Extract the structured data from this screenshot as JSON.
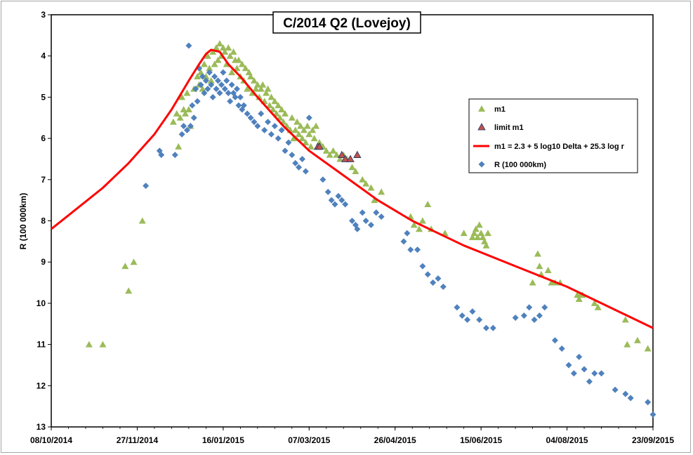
{
  "chart_data": {
    "type": "scatter",
    "title": "C/2014 Q2 (Lovejoy)",
    "xlabel": "",
    "ylabel": "R (100 000km)",
    "x_type": "date",
    "xlim": [
      "2014-10-08",
      "2015-09-23"
    ],
    "ylim": [
      3,
      13
    ],
    "y_inverted": true,
    "x_ticks": [
      "08/10/2014",
      "27/11/2014",
      "16/01/2015",
      "07/03/2015",
      "26/04/2015",
      "15/06/2015",
      "04/08/2015",
      "23/09/2015"
    ],
    "y_ticks": [
      "3",
      "4",
      "5",
      "6",
      "7",
      "8",
      "9",
      "10",
      "11",
      "12",
      "13"
    ],
    "grid": false,
    "legend_position": "right",
    "series": [
      {
        "name": "m1",
        "marker": "triangle",
        "color": "#9bbb59",
        "points": [
          [
            "2014-10-30",
            11.0
          ],
          [
            "2014-11-07",
            11.0
          ],
          [
            "2014-11-20",
            9.1
          ],
          [
            "2014-11-22",
            9.7
          ],
          [
            "2014-11-25",
            9.0
          ],
          [
            "2014-11-30",
            8.0
          ],
          [
            "2014-12-18",
            5.6
          ],
          [
            "2014-12-20",
            5.4
          ],
          [
            "2014-12-21",
            6.2
          ],
          [
            "2014-12-22",
            5.5
          ],
          [
            "2014-12-23",
            5.0
          ],
          [
            "2014-12-24",
            5.3
          ],
          [
            "2014-12-25",
            5.4
          ],
          [
            "2014-12-26",
            4.9
          ],
          [
            "2014-12-27",
            5.3
          ],
          [
            "2014-12-28",
            5.7
          ],
          [
            "2014-12-30",
            4.8
          ],
          [
            "2015-01-01",
            4.5
          ],
          [
            "2015-01-02",
            4.7
          ],
          [
            "2015-01-03",
            4.4
          ],
          [
            "2015-01-04",
            4.8
          ],
          [
            "2015-01-05",
            4.2
          ],
          [
            "2015-01-06",
            4.5
          ],
          [
            "2015-01-07",
            4.0
          ],
          [
            "2015-01-08",
            4.3
          ],
          [
            "2015-01-09",
            4.6
          ],
          [
            "2015-01-10",
            3.9
          ],
          [
            "2015-01-11",
            4.2
          ],
          [
            "2015-01-12",
            3.8
          ],
          [
            "2015-01-13",
            4.1
          ],
          [
            "2015-01-14",
            3.7
          ],
          [
            "2015-01-15",
            4.0
          ],
          [
            "2015-01-16",
            3.8
          ],
          [
            "2015-01-17",
            3.9
          ],
          [
            "2015-01-18",
            4.2
          ],
          [
            "2015-01-19",
            3.8
          ],
          [
            "2015-01-20",
            4.0
          ],
          [
            "2015-01-21",
            4.4
          ],
          [
            "2015-01-22",
            3.9
          ],
          [
            "2015-01-23",
            4.1
          ],
          [
            "2015-01-24",
            4.3
          ],
          [
            "2015-01-25",
            4.1
          ],
          [
            "2015-01-26",
            4.5
          ],
          [
            "2015-01-27",
            4.2
          ],
          [
            "2015-01-28",
            4.6
          ],
          [
            "2015-01-29",
            4.3
          ],
          [
            "2015-01-30",
            4.8
          ],
          [
            "2015-01-31",
            4.4
          ],
          [
            "2015-02-01",
            4.5
          ],
          [
            "2015-02-02",
            4.9
          ],
          [
            "2015-02-03",
            4.6
          ],
          [
            "2015-02-04",
            4.8
          ],
          [
            "2015-02-05",
            4.7
          ],
          [
            "2015-02-06",
            5.0
          ],
          [
            "2015-02-07",
            4.8
          ],
          [
            "2015-02-08",
            4.7
          ],
          [
            "2015-02-09",
            5.1
          ],
          [
            "2015-02-10",
            4.9
          ],
          [
            "2015-02-11",
            4.8
          ],
          [
            "2015-02-12",
            5.2
          ],
          [
            "2015-02-13",
            5.0
          ],
          [
            "2015-02-14",
            5.3
          ],
          [
            "2015-02-15",
            5.1
          ],
          [
            "2015-02-16",
            5.4
          ],
          [
            "2015-02-17",
            5.2
          ],
          [
            "2015-02-18",
            5.5
          ],
          [
            "2015-02-19",
            5.3
          ],
          [
            "2015-02-20",
            5.6
          ],
          [
            "2015-02-21",
            5.4
          ],
          [
            "2015-02-22",
            5.7
          ],
          [
            "2015-02-24",
            5.8
          ],
          [
            "2015-02-25",
            5.5
          ],
          [
            "2015-02-26",
            6.0
          ],
          [
            "2015-02-27",
            5.8
          ],
          [
            "2015-02-28",
            5.6
          ],
          [
            "2015-03-01",
            5.9
          ],
          [
            "2015-03-02",
            5.7
          ],
          [
            "2015-03-03",
            6.0
          ],
          [
            "2015-03-04",
            5.8
          ],
          [
            "2015-03-05",
            6.1
          ],
          [
            "2015-03-06",
            5.7
          ],
          [
            "2015-03-07",
            5.9
          ],
          [
            "2015-03-08",
            6.2
          ],
          [
            "2015-03-09",
            5.8
          ],
          [
            "2015-03-10",
            6.0
          ],
          [
            "2015-03-11",
            5.7
          ],
          [
            "2015-03-13",
            6.1
          ],
          [
            "2015-03-15",
            6.2
          ],
          [
            "2015-03-17",
            6.3
          ],
          [
            "2015-03-19",
            6.4
          ],
          [
            "2015-03-21",
            6.3
          ],
          [
            "2015-03-23",
            6.4
          ],
          [
            "2015-03-25",
            6.5
          ],
          [
            "2015-03-27",
            6.4
          ],
          [
            "2015-03-29",
            6.5
          ],
          [
            "2015-04-01",
            6.7
          ],
          [
            "2015-04-03",
            6.8
          ],
          [
            "2015-04-07",
            7.0
          ],
          [
            "2015-04-09",
            7.1
          ],
          [
            "2015-04-12",
            7.2
          ],
          [
            "2015-04-14",
            7.5
          ],
          [
            "2015-04-18",
            7.3
          ],
          [
            "2015-05-05",
            7.9
          ],
          [
            "2015-05-07",
            8.1
          ],
          [
            "2015-05-10",
            8.2
          ],
          [
            "2015-05-12",
            8.0
          ],
          [
            "2015-05-15",
            7.6
          ],
          [
            "2015-05-17",
            8.2
          ],
          [
            "2015-05-25",
            8.3
          ],
          [
            "2015-06-05",
            8.3
          ],
          [
            "2015-06-10",
            8.4
          ],
          [
            "2015-06-11",
            8.3
          ],
          [
            "2015-06-12",
            8.2
          ],
          [
            "2015-06-13",
            8.4
          ],
          [
            "2015-06-14",
            8.1
          ],
          [
            "2015-06-15",
            8.3
          ],
          [
            "2015-06-16",
            8.4
          ],
          [
            "2015-06-17",
            8.5
          ],
          [
            "2015-06-18",
            8.6
          ],
          [
            "2015-06-19",
            8.3
          ],
          [
            "2015-07-15",
            9.5
          ],
          [
            "2015-07-18",
            8.8
          ],
          [
            "2015-07-19",
            9.1
          ],
          [
            "2015-07-20",
            9.3
          ],
          [
            "2015-07-24",
            9.2
          ],
          [
            "2015-07-26",
            9.5
          ],
          [
            "2015-07-28",
            9.5
          ],
          [
            "2015-07-31",
            9.5
          ],
          [
            "2015-08-10",
            9.8
          ],
          [
            "2015-08-11",
            9.9
          ],
          [
            "2015-08-12",
            9.8
          ],
          [
            "2015-08-13",
            9.8
          ],
          [
            "2015-08-20",
            10.0
          ],
          [
            "2015-08-22",
            10.1
          ],
          [
            "2015-09-07",
            10.4
          ],
          [
            "2015-09-08",
            11.0
          ],
          [
            "2015-09-14",
            10.9
          ],
          [
            "2015-09-20",
            11.1
          ]
        ]
      },
      {
        "name": "limit m1",
        "marker": "triangle",
        "color": "#c0504d",
        "stroke": "#1f3864",
        "points": [
          [
            "2015-03-12",
            6.2
          ],
          [
            "2015-03-13",
            6.2
          ],
          [
            "2015-03-26",
            6.4
          ],
          [
            "2015-03-28",
            6.5
          ],
          [
            "2015-03-31",
            6.5
          ],
          [
            "2015-04-04",
            6.4
          ]
        ]
      },
      {
        "name": "m1 = 2.3 + 5 log10 Delta + 25.3 log r",
        "type": "line",
        "color": "#ff0000",
        "points": [
          [
            "2014-10-08",
            8.2
          ],
          [
            "2014-10-23",
            7.7
          ],
          [
            "2014-11-07",
            7.2
          ],
          [
            "2014-11-22",
            6.6
          ],
          [
            "2014-12-07",
            5.9
          ],
          [
            "2014-12-17",
            5.3
          ],
          [
            "2014-12-27",
            4.6
          ],
          [
            "2015-01-02",
            4.2
          ],
          [
            "2015-01-06",
            3.95
          ],
          [
            "2015-01-09",
            3.85
          ],
          [
            "2015-01-14",
            3.9
          ],
          [
            "2015-01-19",
            4.2
          ],
          [
            "2015-01-26",
            4.5
          ],
          [
            "2015-02-05",
            5.0
          ],
          [
            "2015-02-20",
            5.7
          ],
          [
            "2015-03-07",
            6.3
          ],
          [
            "2015-03-27",
            6.9
          ],
          [
            "2015-04-16",
            7.5
          ],
          [
            "2015-05-06",
            8.0
          ],
          [
            "2015-06-05",
            8.6
          ],
          [
            "2015-07-05",
            9.1
          ],
          [
            "2015-08-04",
            9.6
          ],
          [
            "2015-09-03",
            10.2
          ],
          [
            "2015-09-23",
            10.6
          ]
        ]
      },
      {
        "name": "R (100 000km)",
        "marker": "diamond",
        "color": "#4f81bd",
        "points": [
          [
            "2014-12-02",
            7.15
          ],
          [
            "2014-12-10",
            6.3
          ],
          [
            "2014-12-11",
            6.4
          ],
          [
            "2014-12-19",
            6.4
          ],
          [
            "2014-12-23",
            5.9
          ],
          [
            "2014-12-24",
            5.7
          ],
          [
            "2014-12-26",
            5.8
          ],
          [
            "2014-12-27",
            3.75
          ],
          [
            "2014-12-28",
            5.7
          ],
          [
            "2014-12-29",
            5.2
          ],
          [
            "2014-12-30",
            5.5
          ],
          [
            "2014-12-31",
            4.8
          ],
          [
            "2015-01-01",
            5.1
          ],
          [
            "2015-01-02",
            4.3
          ],
          [
            "2015-01-03",
            4.7
          ],
          [
            "2015-01-04",
            4.5
          ],
          [
            "2015-01-05",
            4.9
          ],
          [
            "2015-01-06",
            4.6
          ],
          [
            "2015-01-07",
            4.8
          ],
          [
            "2015-01-08",
            4.4
          ],
          [
            "2015-01-09",
            4.7
          ],
          [
            "2015-01-10",
            5.0
          ],
          [
            "2015-01-11",
            4.5
          ],
          [
            "2015-01-12",
            4.8
          ],
          [
            "2015-01-13",
            4.6
          ],
          [
            "2015-01-14",
            4.9
          ],
          [
            "2015-01-15",
            4.7
          ],
          [
            "2015-01-16",
            4.4
          ],
          [
            "2015-01-17",
            4.8
          ],
          [
            "2015-01-18",
            4.6
          ],
          [
            "2015-01-19",
            4.9
          ],
          [
            "2015-01-20",
            5.1
          ],
          [
            "2015-01-21",
            4.7
          ],
          [
            "2015-01-22",
            4.9
          ],
          [
            "2015-01-23",
            5.0
          ],
          [
            "2015-01-24",
            4.8
          ],
          [
            "2015-01-25",
            5.2
          ],
          [
            "2015-01-26",
            5.0
          ],
          [
            "2015-01-27",
            5.3
          ],
          [
            "2015-01-28",
            5.2
          ],
          [
            "2015-01-30",
            5.4
          ],
          [
            "2015-02-01",
            5.5
          ],
          [
            "2015-02-03",
            5.6
          ],
          [
            "2015-02-05",
            5.7
          ],
          [
            "2015-02-07",
            5.4
          ],
          [
            "2015-02-09",
            5.8
          ],
          [
            "2015-02-11",
            5.6
          ],
          [
            "2015-02-13",
            5.9
          ],
          [
            "2015-02-15",
            5.7
          ],
          [
            "2015-02-17",
            6.0
          ],
          [
            "2015-02-19",
            5.8
          ],
          [
            "2015-02-21",
            6.3
          ],
          [
            "2015-02-23",
            6.1
          ],
          [
            "2015-02-25",
            6.4
          ],
          [
            "2015-02-27",
            6.6
          ],
          [
            "2015-03-01",
            6.7
          ],
          [
            "2015-03-03",
            6.5
          ],
          [
            "2015-03-05",
            6.8
          ],
          [
            "2015-03-07",
            5.5
          ],
          [
            "2015-03-15",
            7.0
          ],
          [
            "2015-03-18",
            7.3
          ],
          [
            "2015-03-20",
            7.5
          ],
          [
            "2015-03-22",
            7.6
          ],
          [
            "2015-03-24",
            7.4
          ],
          [
            "2015-03-26",
            7.5
          ],
          [
            "2015-03-28",
            7.6
          ],
          [
            "2015-04-01",
            8.0
          ],
          [
            "2015-04-03",
            8.1
          ],
          [
            "2015-04-04",
            8.2
          ],
          [
            "2015-04-07",
            7.8
          ],
          [
            "2015-04-09",
            8.0
          ],
          [
            "2015-04-12",
            8.1
          ],
          [
            "2015-04-15",
            7.8
          ],
          [
            "2015-04-18",
            7.9
          ],
          [
            "2015-05-01",
            8.5
          ],
          [
            "2015-05-03",
            8.3
          ],
          [
            "2015-05-05",
            8.7
          ],
          [
            "2015-05-09",
            8.7
          ],
          [
            "2015-05-12",
            9.1
          ],
          [
            "2015-05-15",
            9.3
          ],
          [
            "2015-05-18",
            9.5
          ],
          [
            "2015-05-21",
            9.4
          ],
          [
            "2015-05-24",
            9.6
          ],
          [
            "2015-06-01",
            10.1
          ],
          [
            "2015-06-04",
            10.3
          ],
          [
            "2015-06-07",
            10.4
          ],
          [
            "2015-06-10",
            10.2
          ],
          [
            "2015-06-14",
            10.4
          ],
          [
            "2015-06-18",
            10.6
          ],
          [
            "2015-06-22",
            10.6
          ],
          [
            "2015-07-05",
            10.35
          ],
          [
            "2015-07-10",
            10.3
          ],
          [
            "2015-07-13",
            10.1
          ],
          [
            "2015-07-16",
            10.4
          ],
          [
            "2015-07-19",
            10.3
          ],
          [
            "2015-07-22",
            10.1
          ],
          [
            "2015-07-28",
            10.9
          ],
          [
            "2015-08-01",
            11.1
          ],
          [
            "2015-08-05",
            11.5
          ],
          [
            "2015-08-08",
            11.7
          ],
          [
            "2015-08-11",
            11.3
          ],
          [
            "2015-08-14",
            11.6
          ],
          [
            "2015-08-17",
            11.9
          ],
          [
            "2015-08-20",
            11.7
          ],
          [
            "2015-08-24",
            11.7
          ],
          [
            "2015-09-01",
            12.1
          ],
          [
            "2015-09-07",
            12.2
          ],
          [
            "2015-09-10",
            12.3
          ],
          [
            "2015-09-20",
            12.4
          ],
          [
            "2015-09-23",
            12.7
          ]
        ]
      }
    ]
  }
}
